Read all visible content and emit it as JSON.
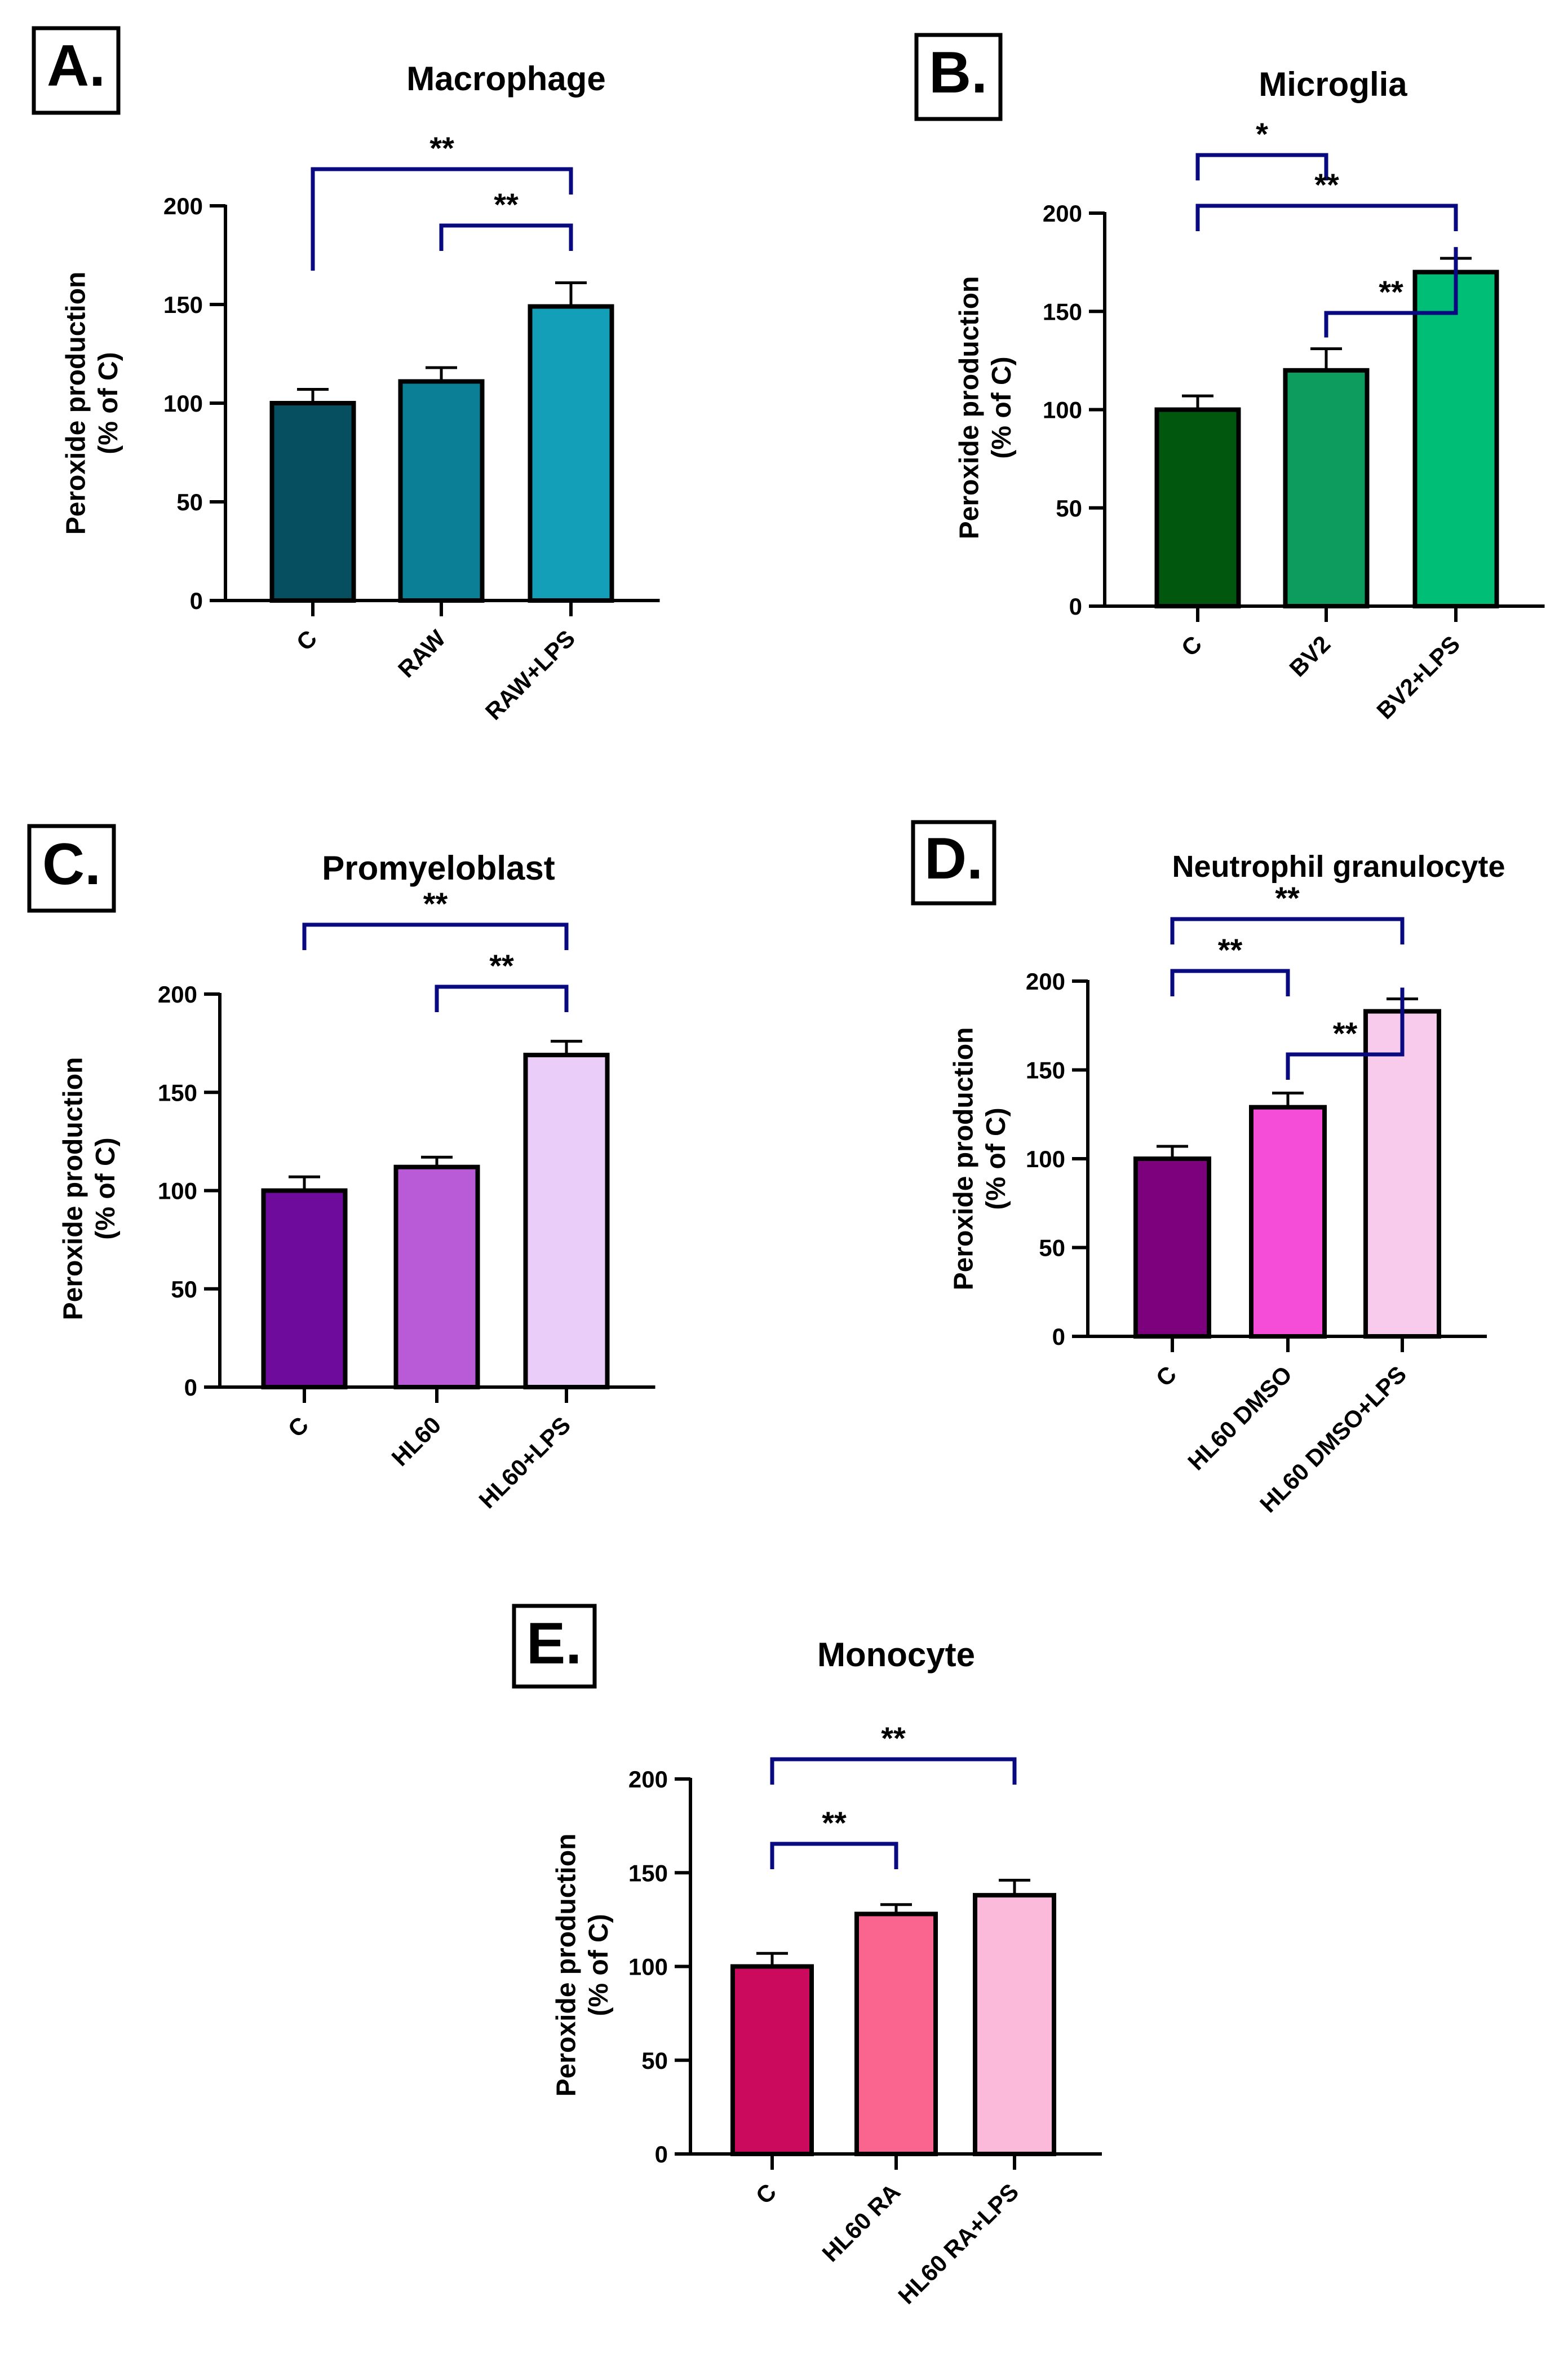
{
  "styles": {
    "bracket_color": "#0a0a80",
    "axis_color": "#000000"
  },
  "chart_data": [
    {
      "type": "bar",
      "panel_label": "A.",
      "title": "Macrophage",
      "ylabel_line1": "Peroxide production",
      "ylabel_line2": "(% of C)",
      "ylim": [
        0,
        200
      ],
      "yticks": [
        0,
        50,
        100,
        150,
        200
      ],
      "grid": false,
      "categories": [
        "C",
        "RAW",
        "RAW+LPS"
      ],
      "values": [
        100,
        111,
        149
      ],
      "errors": [
        7,
        7,
        12
      ],
      "colors": [
        "#054f61",
        "#0b7f96",
        "#139fb8"
      ],
      "significance": [
        {
          "from": 0,
          "to": 2,
          "label": "**"
        },
        {
          "from": 1,
          "to": 2,
          "label": "**"
        }
      ]
    },
    {
      "type": "bar",
      "panel_label": "B.",
      "title": "Microglia",
      "ylabel_line1": "Peroxide production",
      "ylabel_line2": "(% of C)",
      "ylim": [
        0,
        200
      ],
      "yticks": [
        0,
        50,
        100,
        150,
        200
      ],
      "grid": false,
      "categories": [
        "C",
        "BV2",
        "BV2+LPS"
      ],
      "values": [
        100,
        120,
        170
      ],
      "errors": [
        7,
        11,
        7
      ],
      "colors": [
        "#02570e",
        "#0e9b5e",
        "#00be75"
      ],
      "significance": [
        {
          "from": 0,
          "to": 1,
          "label": "*"
        },
        {
          "from": 0,
          "to": 2,
          "label": "**"
        },
        {
          "from": 1,
          "to": 2,
          "label": "**"
        }
      ]
    },
    {
      "type": "bar",
      "panel_label": "C.",
      "title": "Promyeloblast",
      "ylabel_line1": "Peroxide production",
      "ylabel_line2": "(% of C)",
      "ylim": [
        0,
        200
      ],
      "yticks": [
        0,
        50,
        100,
        150,
        200
      ],
      "grid": false,
      "categories": [
        "C",
        "HL60",
        "HL60+LPS"
      ],
      "values": [
        100,
        112,
        169
      ],
      "errors": [
        7,
        5,
        7
      ],
      "colors": [
        "#6e0a9c",
        "#b95ad6",
        "#ebcdfa"
      ],
      "significance": [
        {
          "from": 0,
          "to": 2,
          "label": "**"
        },
        {
          "from": 1,
          "to": 2,
          "label": "**"
        }
      ]
    },
    {
      "type": "bar",
      "panel_label": "D.",
      "title": "Neutrophil granulocyte",
      "ylabel_line1": "Peroxide production",
      "ylabel_line2": "(% of C)",
      "ylim": [
        0,
        200
      ],
      "yticks": [
        0,
        50,
        100,
        150,
        200
      ],
      "grid": false,
      "categories": [
        "C",
        "HL60 DMSO",
        "HL60 DMSO+LPS"
      ],
      "values": [
        100,
        129,
        183
      ],
      "errors": [
        7,
        8,
        7
      ],
      "colors": [
        "#7d007d",
        "#f54dd8",
        "#f8cbec"
      ],
      "significance": [
        {
          "from": 0,
          "to": 2,
          "label": "**"
        },
        {
          "from": 0,
          "to": 1,
          "label": "**"
        },
        {
          "from": 1,
          "to": 2,
          "label": "**"
        }
      ]
    },
    {
      "type": "bar",
      "panel_label": "E.",
      "title": "Monocyte",
      "ylabel_line1": "Peroxide production",
      "ylabel_line2": "(% of C)",
      "ylim": [
        0,
        200
      ],
      "yticks": [
        0,
        50,
        100,
        150,
        200
      ],
      "grid": false,
      "categories": [
        "C",
        "HL60 RA",
        "HL60 RA+LPS"
      ],
      "values": [
        100,
        128,
        138
      ],
      "errors": [
        7,
        5,
        8
      ],
      "colors": [
        "#cb0a5e",
        "#f9658f",
        "#fbbad9"
      ],
      "significance": [
        {
          "from": 0,
          "to": 2,
          "label": "**"
        },
        {
          "from": 0,
          "to": 1,
          "label": "**"
        }
      ]
    }
  ]
}
